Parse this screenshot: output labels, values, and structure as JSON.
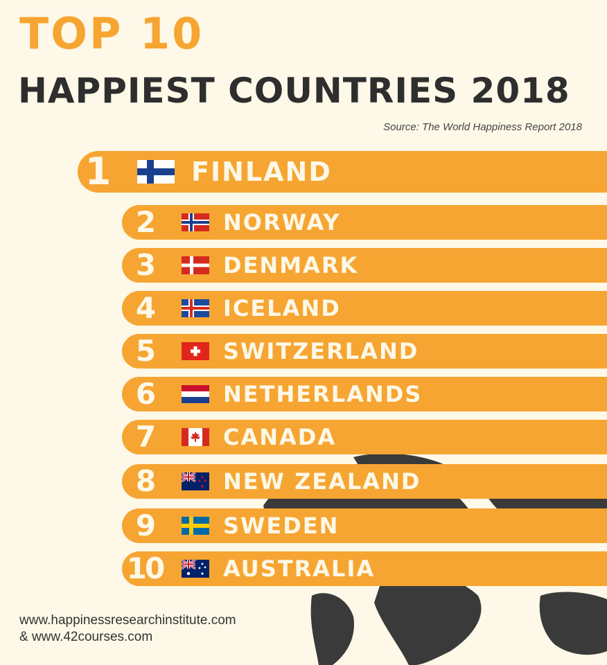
{
  "header": {
    "title_top": "TOP 10",
    "title_main": "HAPPIEST COUNTRIES 2018",
    "source": "Source: The World Happiness Report 2018"
  },
  "ranking": [
    {
      "rank": "1",
      "country": "FINLAND",
      "flag": "finland-flag"
    },
    {
      "rank": "2",
      "country": "NORWAY",
      "flag": "norway-flag"
    },
    {
      "rank": "3",
      "country": "DENMARK",
      "flag": "denmark-flag"
    },
    {
      "rank": "4",
      "country": "ICELAND",
      "flag": "iceland-flag"
    },
    {
      "rank": "5",
      "country": "SWITZERLAND",
      "flag": "switzerland-flag"
    },
    {
      "rank": "6",
      "country": "NETHERLANDS",
      "flag": "netherlands-flag"
    },
    {
      "rank": "7",
      "country": "CANADA",
      "flag": "canada-flag"
    },
    {
      "rank": "8",
      "country": "NEW ZEALAND",
      "flag": "new-zealand-flag"
    },
    {
      "rank": "9",
      "country": "SWEDEN",
      "flag": "sweden-flag"
    },
    {
      "rank": "10",
      "country": "AUSTRALIA",
      "flag": "australia-flag"
    }
  ],
  "footer": {
    "line1": "www.happinessresearchinstitute.com",
    "line2": "& www.42courses.com"
  },
  "colors": {
    "background": "#fdf8e7",
    "accent": "#f6a532",
    "title_dark": "#2e2e2e",
    "map": "#3a3a3a"
  }
}
